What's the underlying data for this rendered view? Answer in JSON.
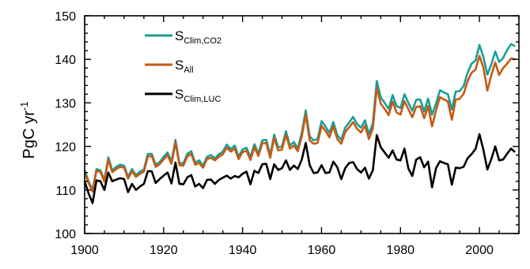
{
  "chart_data": {
    "type": "line",
    "ylabel": "PgC yr",
    "ylabel_superscript": "-1",
    "xlim": [
      1900,
      2010
    ],
    "ylim": [
      100,
      150
    ],
    "x_ticks": [
      1900,
      1920,
      1940,
      1960,
      1980,
      2000
    ],
    "y_ticks": [
      100,
      110,
      120,
      130,
      140,
      150
    ],
    "grid": false,
    "legend_position": "top-left",
    "x": [
      1900,
      1901,
      1902,
      1903,
      1904,
      1905,
      1906,
      1907,
      1908,
      1909,
      1910,
      1911,
      1912,
      1913,
      1914,
      1915,
      1916,
      1917,
      1918,
      1919,
      1920,
      1921,
      1922,
      1923,
      1924,
      1925,
      1926,
      1927,
      1928,
      1929,
      1930,
      1931,
      1932,
      1933,
      1934,
      1935,
      1936,
      1937,
      1938,
      1939,
      1940,
      1941,
      1942,
      1943,
      1944,
      1945,
      1946,
      1947,
      1948,
      1949,
      1950,
      1951,
      1952,
      1953,
      1954,
      1955,
      1956,
      1957,
      1958,
      1959,
      1960,
      1961,
      1962,
      1963,
      1964,
      1965,
      1966,
      1967,
      1968,
      1969,
      1970,
      1971,
      1972,
      1973,
      1974,
      1975,
      1976,
      1977,
      1978,
      1979,
      1980,
      1981,
      1982,
      1983,
      1984,
      1985,
      1986,
      1987,
      1988,
      1989,
      1990,
      1991,
      1992,
      1993,
      1994,
      1995,
      1996,
      1997,
      1998,
      1999,
      2000,
      2001,
      2002,
      2003,
      2004,
      2005,
      2006,
      2007,
      2008,
      2009
    ],
    "series": [
      {
        "name_main": "S",
        "name_sub": "Clim,CO2",
        "color": "#1a9e96",
        "values": [
          114.5,
          112.0,
          110.0,
          114.8,
          114.5,
          112.3,
          117.5,
          114.5,
          115.3,
          115.8,
          115.6,
          113.0,
          114.8,
          113.4,
          114.2,
          114.7,
          118.3,
          118.3,
          115.8,
          116.4,
          117.6,
          118.6,
          116.5,
          121.5,
          116.2,
          116.1,
          118.3,
          118.9,
          116.3,
          116.8,
          115.6,
          117.6,
          118.0,
          117.3,
          118.2,
          118.8,
          120.4,
          119.4,
          120.2,
          117.7,
          119.3,
          119.7,
          117.5,
          120.5,
          118.4,
          121.4,
          121.5,
          118.0,
          122.7,
          119.8,
          120.0,
          123.5,
          120.2,
          121.0,
          119.6,
          123.1,
          128.3,
          122.3,
          121.4,
          121.7,
          125.8,
          124.6,
          123.1,
          125.6,
          122.6,
          121.5,
          124.3,
          125.5,
          126.8,
          125.1,
          124.3,
          126.0,
          122.8,
          125.3,
          135.0,
          131.3,
          130.0,
          128.6,
          131.8,
          129.3,
          128.8,
          132.0,
          130.0,
          128.2,
          130.7,
          130.8,
          128.0,
          131.0,
          127.3,
          129.9,
          132.9,
          132.4,
          132.0,
          128.5,
          132.6,
          132.7,
          133.9,
          136.9,
          139.0,
          139.7,
          143.3,
          140.5,
          136.5,
          138.8,
          141.8,
          139.4,
          140.3,
          142.1,
          143.5,
          143.0
        ]
      },
      {
        "name_main": "S",
        "name_sub": "All",
        "color": "#c65a12",
        "values": [
          114.0,
          111.6,
          109.6,
          114.4,
          114.1,
          111.9,
          117.0,
          114.1,
          114.8,
          115.3,
          115.1,
          112.6,
          114.3,
          113.0,
          113.7,
          114.2,
          117.7,
          117.8,
          115.3,
          115.9,
          117.0,
          118.0,
          116.0,
          120.9,
          115.7,
          115.6,
          117.7,
          118.3,
          115.8,
          116.2,
          115.1,
          117.1,
          117.4,
          116.8,
          117.6,
          118.2,
          119.7,
          118.8,
          119.5,
          117.1,
          118.7,
          119.0,
          116.9,
          119.8,
          117.8,
          120.7,
          120.8,
          117.4,
          122.0,
          119.1,
          119.3,
          122.7,
          119.5,
          120.2,
          118.9,
          122.3,
          127.3,
          121.4,
          120.6,
          120.8,
          124.7,
          123.6,
          122.1,
          124.6,
          121.7,
          120.6,
          123.3,
          124.4,
          125.6,
          124.0,
          123.2,
          124.8,
          121.7,
          124.1,
          133.4,
          129.8,
          128.6,
          127.2,
          130.3,
          127.8,
          127.3,
          130.4,
          128.5,
          126.7,
          129.1,
          129.2,
          126.5,
          129.3,
          124.6,
          128.3,
          131.3,
          130.8,
          130.3,
          126.1,
          130.8,
          130.9,
          132.1,
          135.0,
          136.9,
          137.6,
          140.8,
          138.1,
          132.8,
          136.4,
          139.3,
          136.4,
          138.0,
          139.0,
          140.2,
          140.0
        ]
      },
      {
        "name_main": "S",
        "name_sub": "Clim,LUC",
        "color": "#000000",
        "values": [
          112.0,
          109.2,
          107.0,
          112.2,
          112.0,
          110.0,
          114.0,
          112.0,
          112.4,
          112.7,
          112.5,
          109.5,
          111.4,
          110.0,
          110.8,
          111.4,
          114.3,
          114.3,
          111.6,
          112.5,
          113.3,
          114.0,
          111.5,
          116.3,
          111.4,
          111.3,
          112.9,
          113.4,
          110.8,
          111.4,
          110.4,
          112.3,
          112.4,
          111.4,
          112.3,
          112.8,
          113.3,
          112.6,
          113.2,
          112.9,
          113.7,
          114.2,
          111.3,
          114.4,
          113.9,
          115.9,
          116.0,
          112.5,
          115.9,
          114.6,
          115.0,
          116.8,
          114.6,
          115.6,
          114.8,
          117.0,
          120.8,
          115.7,
          113.9,
          114.0,
          115.7,
          113.9,
          114.0,
          116.5,
          115.2,
          112.5,
          115.0,
          116.2,
          116.4,
          114.8,
          114.0,
          115.1,
          112.6,
          114.5,
          122.6,
          119.8,
          118.6,
          117.4,
          119.1,
          117.0,
          116.8,
          119.5,
          114.9,
          113.2,
          117.0,
          117.5,
          115.2,
          116.5,
          110.6,
          115.0,
          116.6,
          116.2,
          115.9,
          111.2,
          115.1,
          115.0,
          115.3,
          117.3,
          118.2,
          119.4,
          122.8,
          119.2,
          114.7,
          117.1,
          120.0,
          116.8,
          117.0,
          118.3,
          119.5,
          118.7
        ]
      }
    ]
  }
}
